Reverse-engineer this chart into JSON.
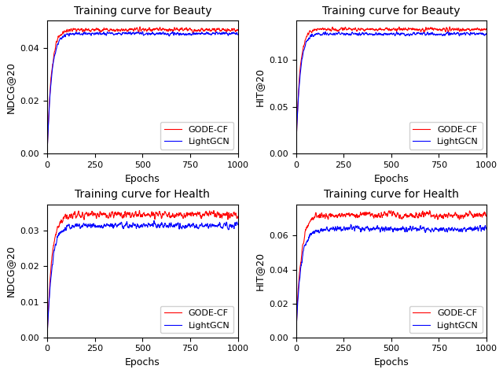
{
  "titles": [
    "Training curve for Beauty",
    "Training curve for Beauty",
    "Training curve for Health",
    "Training curve for Health"
  ],
  "ylabels": [
    "NDCG@20",
    "HIT@20",
    "NDCG@20",
    "HIT@20"
  ],
  "xlabel": "Epochs",
  "legend_labels": [
    "GODE-CF",
    "LightGCN"
  ],
  "color_gode": "red",
  "color_lgcn": "blue",
  "epochs": 1000,
  "xticks": [
    0,
    250,
    500,
    750,
    1000
  ],
  "figsize": [
    6.4,
    4.74
  ],
  "dpi": 100,
  "curves": {
    "beauty_ndcg": {
      "gode_final": 0.047,
      "lgcn_final": 0.0455,
      "growth": 0.045,
      "noise_scale": 0.0008,
      "ylim_top": null,
      "yticks": [
        0.0,
        0.02,
        0.04
      ]
    },
    "beauty_hit": {
      "gode_final": 0.133,
      "lgcn_final": 0.128,
      "growth": 0.05,
      "noise_scale": 0.002,
      "ylim_top": null,
      "yticks": [
        0.0,
        0.05,
        0.1
      ]
    },
    "health_ndcg": {
      "gode_final": 0.0345,
      "lgcn_final": 0.0315,
      "growth": 0.04,
      "noise_scale": 0.001,
      "ylim_top": null,
      "yticks": [
        0.0,
        0.01,
        0.02,
        0.03
      ]
    },
    "health_hit": {
      "gode_final": 0.072,
      "lgcn_final": 0.064,
      "growth": 0.04,
      "noise_scale": 0.002,
      "ylim_top": null,
      "yticks": [
        0.0,
        0.02,
        0.04,
        0.06
      ]
    }
  }
}
